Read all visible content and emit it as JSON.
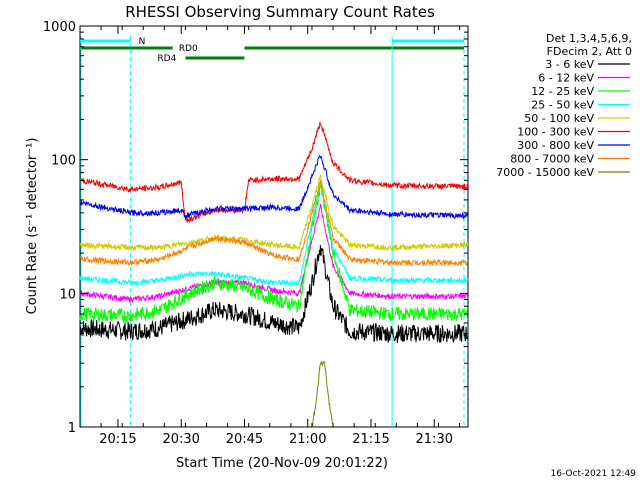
{
  "chart_data": {
    "type": "line",
    "title": "RHESSI Observing Summary Count Rates",
    "xlabel": "Start Time (20-Nov-09 20:01:22)",
    "ylabel": "Count Rate (s⁻¹ detector⁻¹)",
    "yscale": "log",
    "ylim": [
      1,
      1000
    ],
    "xlim": [
      "20:06",
      "21:38"
    ],
    "x_ticks": [
      "20:15",
      "20:30",
      "20:45",
      "21:00",
      "21:15",
      "21:30"
    ],
    "y_ticks": [
      "1",
      "10",
      "100",
      "1000"
    ],
    "legend_header": [
      "Det 1,3,4,5,6,9,",
      "FDecim 2, Att 0"
    ],
    "legend_position": "right",
    "footer": "16-Oct-2021 12:49",
    "flag_labels": {
      "n": "N",
      "rd0": "RD0",
      "rd4": "RD4"
    },
    "series": [
      {
        "name": "3 - 6 keV",
        "color": "#000000",
        "x": [
          "20:06",
          "20:18",
          "20:25",
          "20:32",
          "20:38",
          "20:45",
          "20:52",
          "20:58",
          "21:01",
          "21:03",
          "21:06",
          "21:10",
          "21:20",
          "21:38"
        ],
        "y": [
          5.5,
          5.2,
          5.5,
          6.5,
          7.5,
          7.0,
          6.0,
          5.5,
          12,
          23,
          8,
          5.2,
          5.0,
          5.0
        ]
      },
      {
        "name": "6 - 12 keV",
        "color": "#ff00ff",
        "x": [
          "20:06",
          "20:18",
          "20:25",
          "20:32",
          "20:38",
          "20:45",
          "20:52",
          "20:58",
          "21:01",
          "21:03",
          "21:06",
          "21:10",
          "21:20",
          "21:38"
        ],
        "y": [
          10,
          9,
          9.5,
          11,
          12,
          12,
          10.5,
          10,
          25,
          45,
          16,
          10,
          9.5,
          9.5
        ]
      },
      {
        "name": "12 - 25 keV",
        "color": "#00ff00",
        "x": [
          "20:06",
          "20:18",
          "20:25",
          "20:32",
          "20:38",
          "20:45",
          "20:52",
          "20:58",
          "21:01",
          "21:03",
          "21:06",
          "21:10",
          "21:20",
          "21:38"
        ],
        "y": [
          7,
          6.8,
          7.5,
          10,
          12,
          11,
          9,
          8,
          30,
          65,
          20,
          7.5,
          7,
          7
        ]
      },
      {
        "name": "25 - 50 keV",
        "color": "#00ffff",
        "x": [
          "20:06",
          "20:18",
          "20:25",
          "20:32",
          "20:38",
          "20:45",
          "20:52",
          "20:58",
          "21:01",
          "21:03",
          "21:06",
          "21:10",
          "21:20",
          "21:38"
        ],
        "y": [
          13,
          12,
          12.5,
          14,
          14,
          13,
          12,
          12,
          35,
          70,
          22,
          13,
          12.5,
          12.5
        ]
      },
      {
        "name": "50 - 100 keV",
        "color": "#cccc00",
        "x": [
          "20:06",
          "20:18",
          "20:25",
          "20:32",
          "20:38",
          "20:45",
          "20:52",
          "20:58",
          "21:01",
          "21:03",
          "21:06",
          "21:10",
          "21:20",
          "21:38"
        ],
        "y": [
          23,
          22,
          22,
          24,
          26,
          25,
          23,
          22,
          45,
          75,
          32,
          23,
          22,
          23
        ]
      },
      {
        "name": "100 - 300 keV",
        "color": "#ff0000",
        "x": [
          "20:06",
          "20:18",
          "20:25",
          "20:30",
          "20:31",
          "20:38",
          "20:45",
          "20:46",
          "20:52",
          "20:58",
          "21:01",
          "21:03",
          "21:06",
          "21:10",
          "21:20",
          "21:38"
        ],
        "y": [
          70,
          60,
          62,
          68,
          35,
          42,
          42,
          70,
          72,
          72,
          120,
          190,
          95,
          70,
          64,
          63
        ]
      },
      {
        "name": "300 - 800 keV",
        "color": "#0000ff",
        "x": [
          "20:06",
          "20:18",
          "20:25",
          "20:30",
          "20:31",
          "20:38",
          "20:45",
          "20:52",
          "20:58",
          "21:01",
          "21:03",
          "21:06",
          "21:10",
          "21:20",
          "21:38"
        ],
        "y": [
          48,
          40,
          40,
          42,
          38,
          43,
          43,
          44,
          43,
          75,
          108,
          55,
          42,
          39,
          38
        ]
      },
      {
        "name": "800 - 7000 keV",
        "color": "#ff8000",
        "x": [
          "20:06",
          "20:18",
          "20:25",
          "20:32",
          "20:38",
          "20:45",
          "20:52",
          "20:58",
          "21:01",
          "21:03",
          "21:06",
          "21:10",
          "21:20",
          "21:38"
        ],
        "y": [
          18,
          17,
          18,
          22,
          26,
          24,
          19,
          18,
          40,
          68,
          26,
          18,
          17,
          17
        ]
      },
      {
        "name": "7000 - 15000 keV",
        "color": "#808000",
        "x": [
          "21:01",
          "21:02",
          "21:03",
          "21:04",
          "21:05",
          "21:06"
        ],
        "y": [
          1,
          1.5,
          3,
          3,
          1.6,
          1
        ]
      }
    ]
  }
}
